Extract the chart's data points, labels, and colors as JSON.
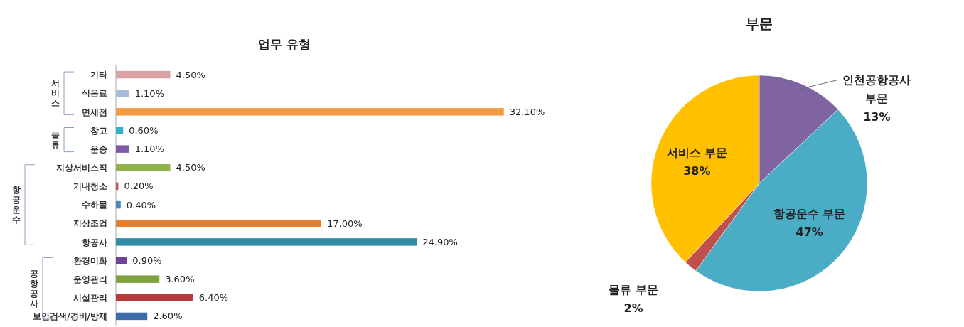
{
  "chart_data": [
    {
      "type": "bar",
      "orientation": "horizontal",
      "title": "업무 유형",
      "categories": [
        "기타",
        "식음료",
        "면세점",
        "창고",
        "운송",
        "지상서비스직",
        "기내청소",
        "수하물",
        "지상조업",
        "항공사",
        "환경미화",
        "운영관리",
        "시설관리",
        "보안검색/경비/방제"
      ],
      "values": [
        4.5,
        1.1,
        32.1,
        0.6,
        1.1,
        4.5,
        0.2,
        0.4,
        17.0,
        24.9,
        0.9,
        3.6,
        6.4,
        2.6
      ],
      "value_labels": [
        "4.50%",
        "1.10%",
        "32.10%",
        "0.60%",
        "1.10%",
        "4.50%",
        "0.20%",
        "0.40%",
        "17.00%",
        "24.90%",
        "0.90%",
        "3.60%",
        "6.40%",
        "2.60%"
      ],
      "colors": [
        "#d9a3a6",
        "#a6bcd8",
        "#f39a45",
        "#31b1c9",
        "#7f58a8",
        "#8fb24c",
        "#c4504e",
        "#4f86c0",
        "#e27f30",
        "#2f8ea6",
        "#6f429c",
        "#7da23f",
        "#b43c3c",
        "#3b6ba9"
      ],
      "annotations": [
        "서비스",
        "물류",
        "항공운수",
        "공항공사"
      ]
    },
    {
      "type": "pie",
      "title": "부문",
      "categories": [
        "인천공항공사 부문",
        "항공운수 부문",
        "물류 부문",
        "서비스 부문"
      ],
      "values": [
        13,
        47,
        2,
        38
      ],
      "colors": [
        "#8064a2",
        "#4bacc6",
        "#c0504d",
        "#ffc000"
      ],
      "value_labels": [
        "13%",
        "47%",
        "2%",
        "38%"
      ]
    }
  ]
}
